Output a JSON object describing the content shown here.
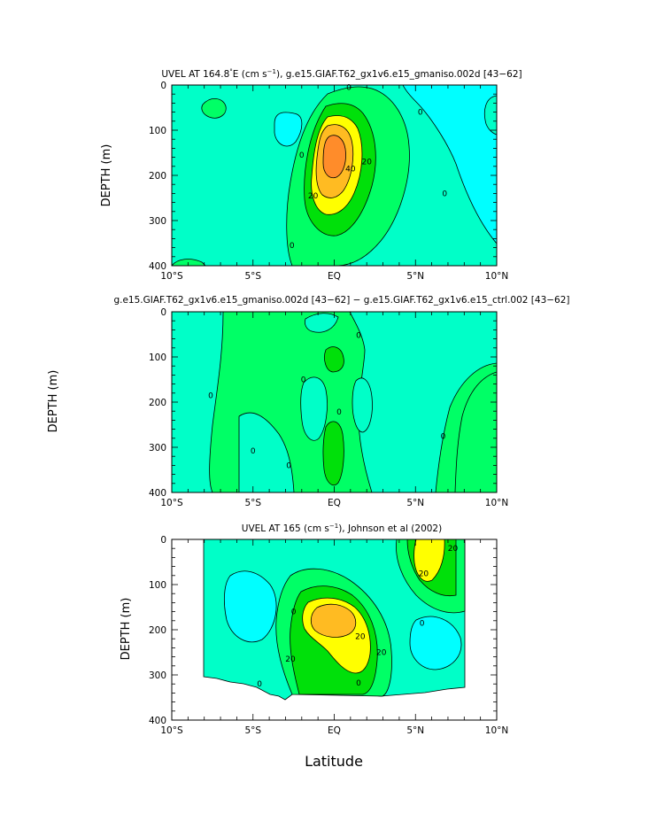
{
  "colors": {
    "c_neg10": "#00ffff",
    "c_neg5": "#00f2e0",
    "c_0": "#00ffc8",
    "c_10": "#00ff66",
    "c_20": "#00e00a",
    "c_30": "#ffff00",
    "c_40": "#ffbb22",
    "c_50": "#ff8c2a",
    "line": "#000000",
    "background": "#ffffff"
  },
  "xlabel": "Latitude",
  "chart_data": [
    {
      "type": "contour",
      "title_pre": "UVEL AT 164.8",
      "title_sup_deg": "°",
      "title_post": "E (cm s",
      "title_sup": "−1",
      "title_end": "), g.e15.GIAF.T62_gx1v6.e15_gmaniso.002d [43−62]",
      "ylabel": "DEPTH (m)",
      "xlim": [
        -10,
        10
      ],
      "ylim": [
        400,
        0
      ],
      "x_ticks": [
        -10,
        -5,
        0,
        5,
        10
      ],
      "x_tick_labels": [
        "10°S",
        "5°S",
        "EQ",
        "5°N",
        "10°N"
      ],
      "y_ticks": [
        0,
        100,
        200,
        300,
        400
      ],
      "y_tick_labels": [
        "0",
        "100",
        "200",
        "300",
        "400"
      ],
      "contour_labels": [
        {
          "text": "0",
          "lat": 0.9,
          "depth": 5
        },
        {
          "text": "0",
          "lat": 5.3,
          "depth": 60
        },
        {
          "text": "0",
          "lat": -2.0,
          "depth": 155
        },
        {
          "text": "20",
          "lat": 2.0,
          "depth": 170
        },
        {
          "text": "40",
          "lat": 1.0,
          "depth": 185
        },
        {
          "text": "20",
          "lat": -1.3,
          "depth": 245
        },
        {
          "text": "0",
          "lat": 6.8,
          "depth": 240
        },
        {
          "text": "0",
          "lat": -2.6,
          "depth": 355
        }
      ]
    },
    {
      "type": "contour",
      "title": "g.e15.GIAF.T62_gx1v6.e15_gmaniso.002d [43−62] − g.e15.GIAF.T62_gx1v6.e15_ctrl.002 [43−62]",
      "ylabel": "DEPTH (m)",
      "xlim": [
        -10,
        10
      ],
      "ylim": [
        400,
        0
      ],
      "x_ticks": [
        -10,
        -5,
        0,
        5,
        10
      ],
      "x_tick_labels": [
        "10°S",
        "5°S",
        "EQ",
        "5°N",
        "10°N"
      ],
      "y_ticks": [
        0,
        100,
        200,
        300,
        400
      ],
      "y_tick_labels": [
        "0",
        "100",
        "200",
        "300",
        "400"
      ],
      "contour_labels": [
        {
          "text": "0",
          "lat": 1.5,
          "depth": 52
        },
        {
          "text": "0",
          "lat": -1.9,
          "depth": 150
        },
        {
          "text": "0",
          "lat": -7.6,
          "depth": 185
        },
        {
          "text": "0",
          "lat": 0.3,
          "depth": 222
        },
        {
          "text": "0",
          "lat": 6.7,
          "depth": 275
        },
        {
          "text": "0",
          "lat": -5.0,
          "depth": 308
        },
        {
          "text": "0",
          "lat": -2.8,
          "depth": 340
        }
      ]
    },
    {
      "type": "contour",
      "title_pre": "UVEL AT 165 (cm s",
      "title_sup": "−1",
      "title_end": "), Johnson et al (2002)",
      "ylabel": "DEPTH (m)",
      "xlim": [
        -10,
        10
      ],
      "ylim": [
        400,
        0
      ],
      "x_ticks": [
        -10,
        -5,
        0,
        5,
        10
      ],
      "x_tick_labels": [
        "10°S",
        "5°S",
        "EQ",
        "5°N",
        "10°N"
      ],
      "y_ticks": [
        0,
        100,
        200,
        300,
        400
      ],
      "y_tick_labels": [
        "0",
        "100",
        "200",
        "300",
        "400"
      ],
      "data_lat_range": [
        -8,
        8
      ],
      "contour_labels": [
        {
          "text": "20",
          "lat": 7.3,
          "depth": 20
        },
        {
          "text": "20",
          "lat": 5.5,
          "depth": 75
        },
        {
          "text": "0",
          "lat": -2.5,
          "depth": 160
        },
        {
          "text": "0",
          "lat": 5.4,
          "depth": 185
        },
        {
          "text": "20",
          "lat": 1.6,
          "depth": 215
        },
        {
          "text": "20",
          "lat": -2.7,
          "depth": 265
        },
        {
          "text": "20",
          "lat": 2.9,
          "depth": 250
        },
        {
          "text": "0",
          "lat": 1.5,
          "depth": 318
        },
        {
          "text": "0",
          "lat": -4.6,
          "depth": 320
        }
      ]
    }
  ]
}
